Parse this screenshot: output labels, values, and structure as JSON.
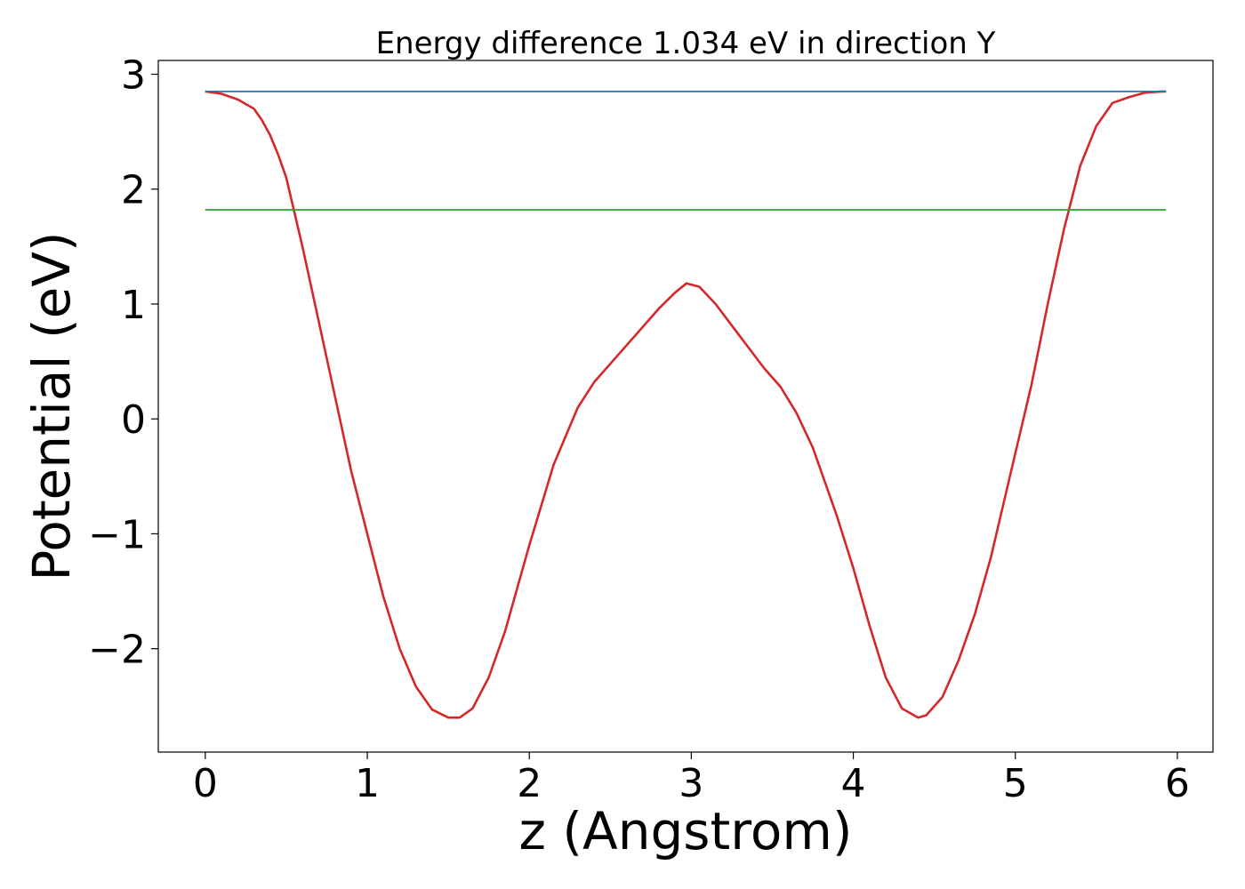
{
  "chart_data": {
    "type": "line",
    "title": "Energy difference 1.034 eV in direction Y",
    "xlabel": "z (Angstrom)",
    "ylabel": "Potential (eV)",
    "xlim": [
      -0.29,
      6.22
    ],
    "ylim": [
      -2.9,
      3.12
    ],
    "xticks": [
      0,
      1,
      2,
      3,
      4,
      5,
      6
    ],
    "xtick_labels": [
      "0",
      "1",
      "2",
      "3",
      "4",
      "5",
      "6"
    ],
    "yticks": [
      -2,
      -1,
      0,
      1,
      2,
      3
    ],
    "ytick_labels": [
      "−2",
      "−1",
      "0",
      "1",
      "2",
      "3"
    ],
    "grid": false,
    "series": [
      {
        "color": "#d62728",
        "x": [
          0,
          0.1,
          0.2,
          0.3,
          0.35,
          0.4,
          0.45,
          0.5,
          0.6,
          0.7,
          0.8,
          0.9,
          1.0,
          1.1,
          1.2,
          1.3,
          1.4,
          1.5,
          1.57,
          1.65,
          1.75,
          1.85,
          2.0,
          2.15,
          2.3,
          2.4,
          2.5,
          2.65,
          2.8,
          2.9,
          2.97,
          3.05,
          3.15,
          3.3,
          3.45,
          3.55,
          3.65,
          3.75,
          3.9,
          4.0,
          4.1,
          4.2,
          4.3,
          4.4,
          4.45,
          4.55,
          4.65,
          4.75,
          4.85,
          5.0,
          5.1,
          5.2,
          5.3,
          5.4,
          5.5,
          5.55,
          5.6,
          5.7,
          5.8,
          5.9,
          5.93
        ],
        "y": [
          2.85,
          2.83,
          2.78,
          2.7,
          2.6,
          2.47,
          2.3,
          2.1,
          1.5,
          0.85,
          0.2,
          -0.45,
          -1.0,
          -1.55,
          -2.0,
          -2.33,
          -2.53,
          -2.6,
          -2.6,
          -2.52,
          -2.25,
          -1.85,
          -1.1,
          -0.4,
          0.1,
          0.32,
          0.48,
          0.72,
          0.96,
          1.1,
          1.18,
          1.15,
          1.0,
          0.72,
          0.44,
          0.28,
          0.05,
          -0.25,
          -0.85,
          -1.3,
          -1.8,
          -2.25,
          -2.52,
          -2.6,
          -2.58,
          -2.42,
          -2.1,
          -1.7,
          -1.2,
          -0.3,
          0.3,
          1.0,
          1.65,
          2.2,
          2.55,
          2.65,
          2.75,
          2.8,
          2.84,
          2.85,
          2.85
        ]
      },
      {
        "color": "#1f77b4",
        "x": [
          0,
          5.93
        ],
        "y": [
          2.85,
          2.85
        ]
      },
      {
        "color": "#2ca02c",
        "x": [
          0,
          5.93
        ],
        "y": [
          1.82,
          1.82
        ]
      }
    ]
  }
}
